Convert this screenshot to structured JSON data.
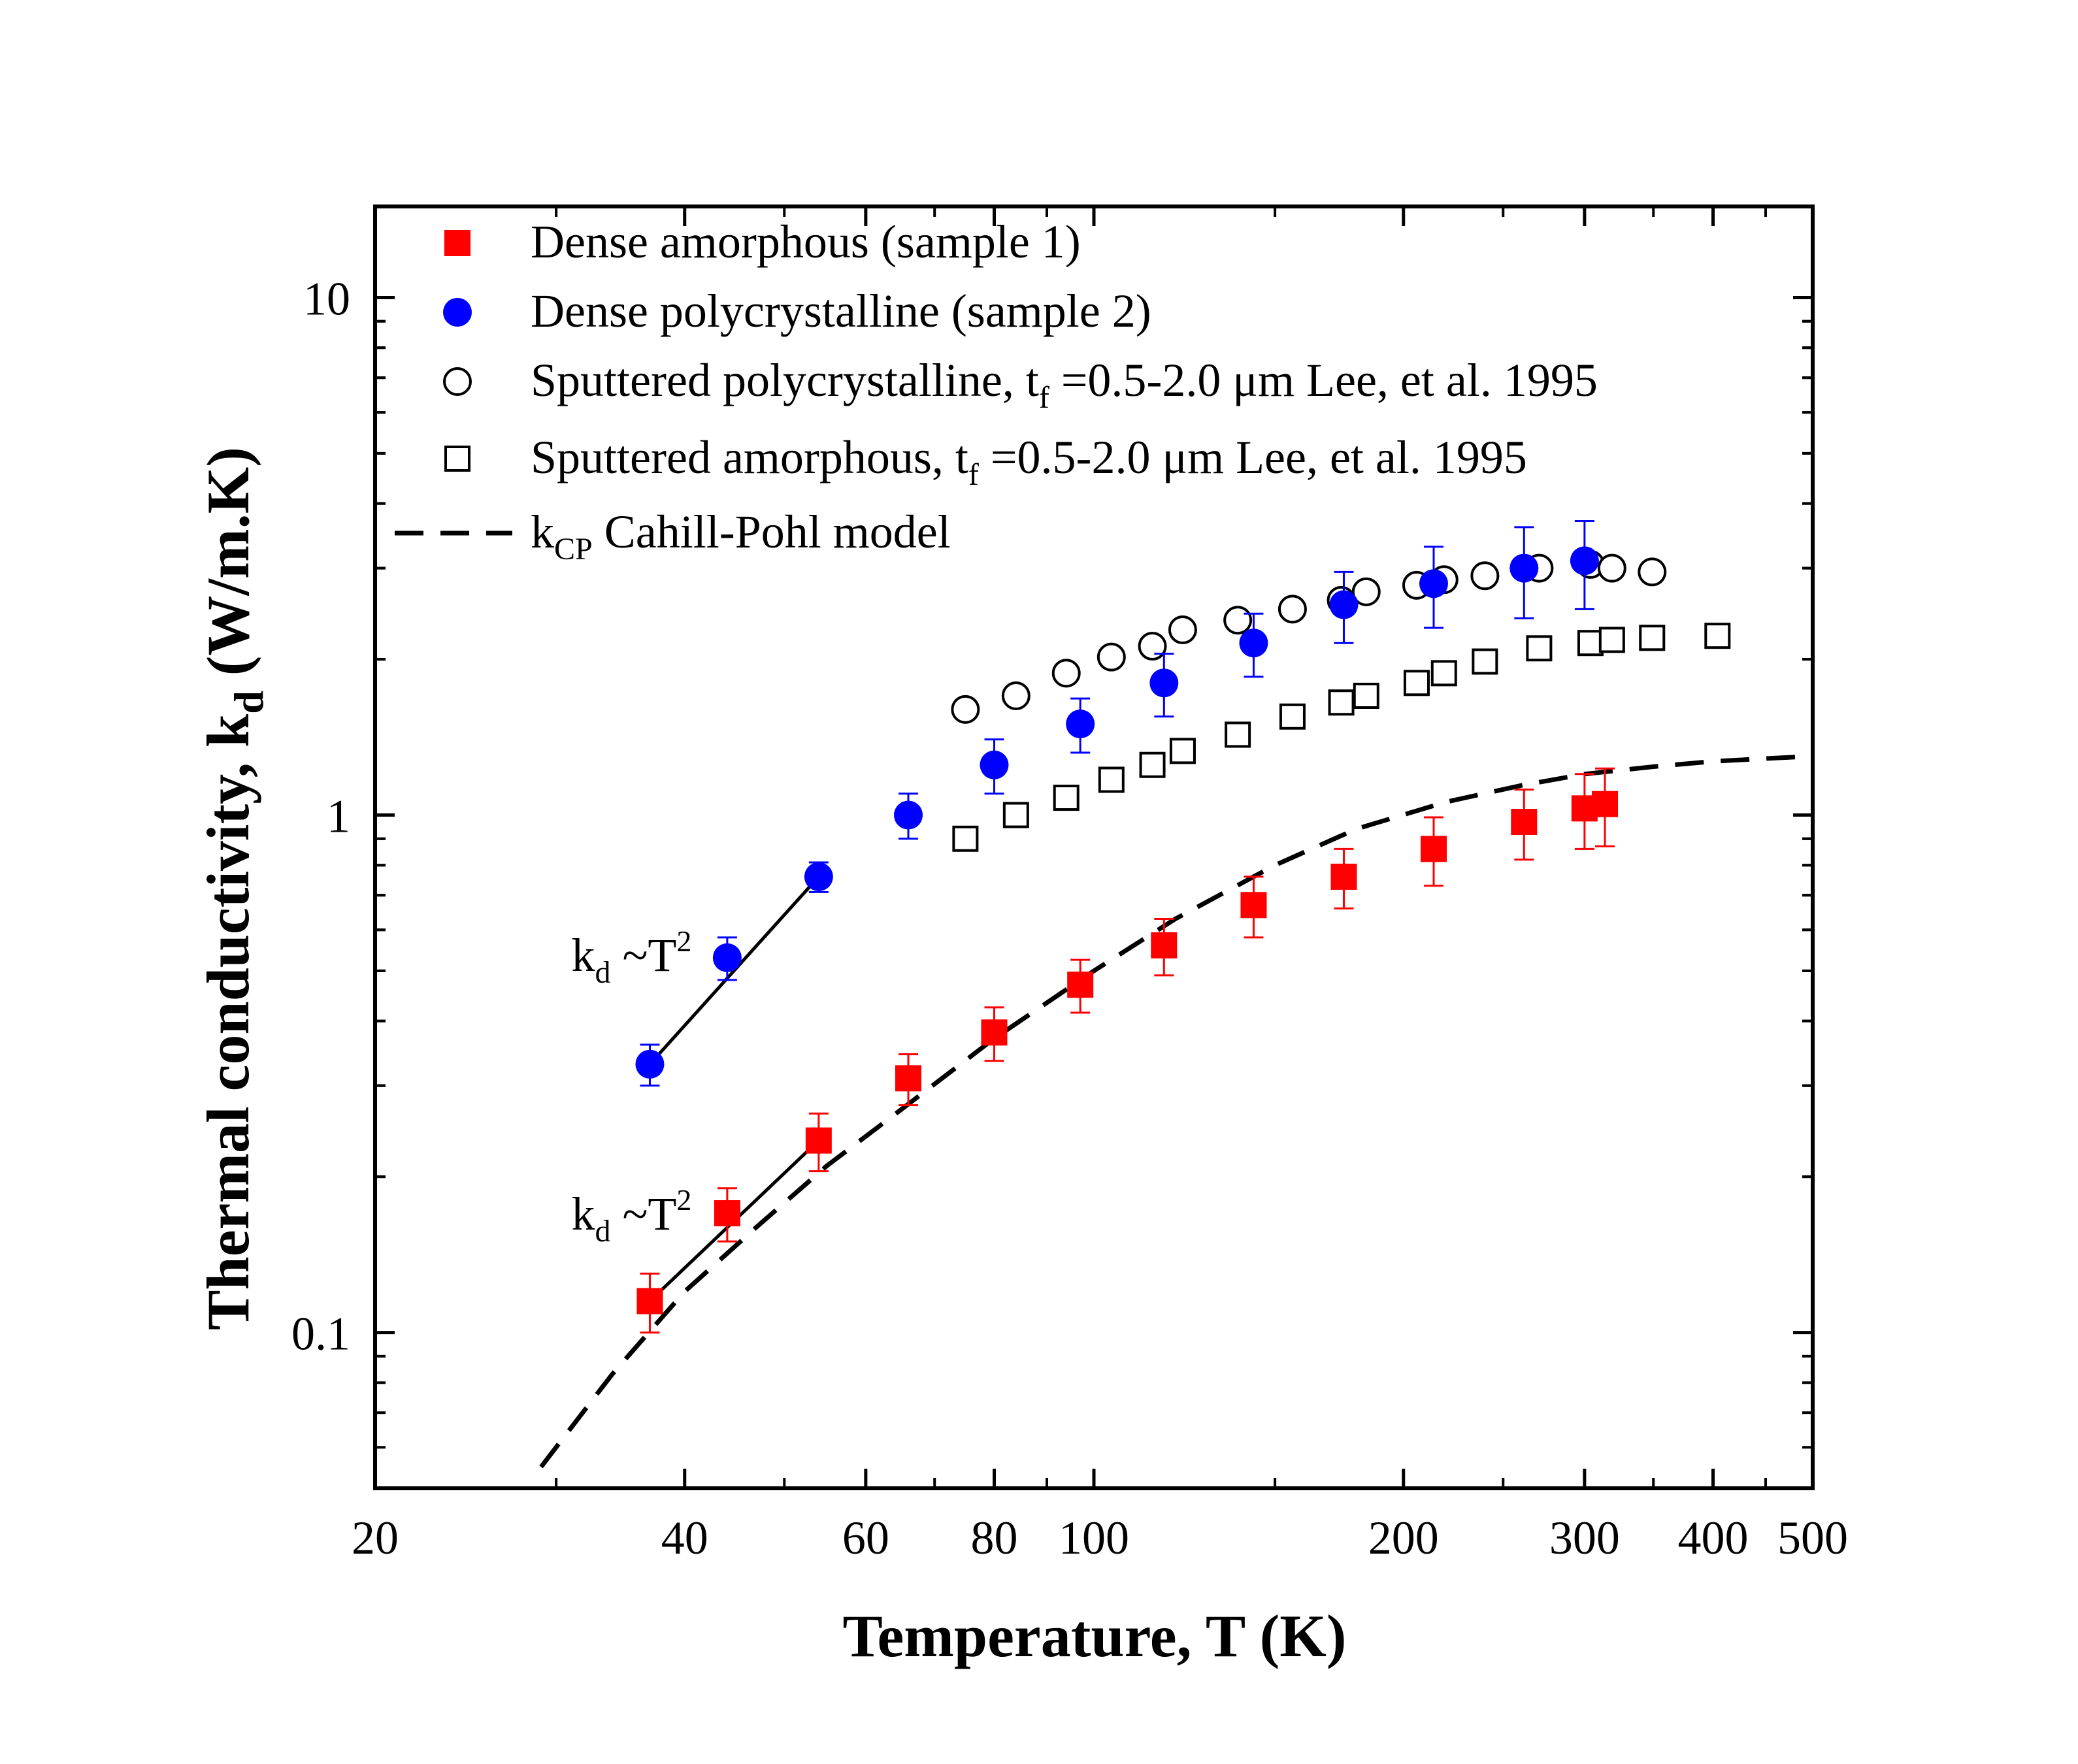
{
  "chart_data": {
    "type": "scatter",
    "xlabel": "Temperature, T (K)",
    "ylabel_main": "Thermal conductivity, k",
    "ylabel_sub": "d",
    "ylabel_unit": " (W/m.K)",
    "x_scale": "log",
    "y_scale": "log",
    "xlim": [
      20,
      500
    ],
    "ylim": [
      0.05,
      15
    ],
    "x_ticks": [
      {
        "value": 20,
        "label": "20"
      },
      {
        "value": 40,
        "label": "40"
      },
      {
        "value": 60,
        "label": "60"
      },
      {
        "value": 80,
        "label": "80"
      },
      {
        "value": 100,
        "label": "100"
      },
      {
        "value": 200,
        "label": "200"
      },
      {
        "value": 300,
        "label": "300"
      },
      {
        "value": 400,
        "label": "400"
      },
      {
        "value": 500,
        "label": "500"
      }
    ],
    "y_ticks": [
      {
        "value": 0.1,
        "label": "0.1"
      },
      {
        "value": 1,
        "label": "1"
      },
      {
        "value": 10,
        "label": "10"
      }
    ],
    "grid": false,
    "legend_position": "top-left",
    "series": [
      {
        "name": "Dense amorphous (sample 1)",
        "marker": "filled-square",
        "color": "#ff0000",
        "x": [
          37,
          44,
          54,
          66,
          80,
          97,
          117,
          143,
          175,
          214,
          262,
          300,
          314
        ],
        "y": [
          0.115,
          0.17,
          0.235,
          0.31,
          0.38,
          0.47,
          0.56,
          0.67,
          0.76,
          0.86,
          0.97,
          1.03,
          1.05
        ],
        "yerr": [
          0.015,
          0.02,
          0.03,
          0.035,
          0.045,
          0.055,
          0.07,
          0.09,
          0.1,
          0.13,
          0.15,
          0.17,
          0.18
        ]
      },
      {
        "name": "Dense polycrystalline (sample 2)",
        "marker": "filled-circle",
        "color": "#0000ff",
        "x": [
          37,
          44,
          54,
          66,
          80,
          97,
          117,
          143,
          175,
          214,
          262,
          300
        ],
        "y": [
          0.33,
          0.53,
          0.76,
          1.0,
          1.25,
          1.5,
          1.8,
          2.15,
          2.55,
          2.8,
          3.0,
          3.1
        ],
        "yerr": [
          0.03,
          0.05,
          0.05,
          0.1,
          0.15,
          0.18,
          0.25,
          0.3,
          0.4,
          0.5,
          0.6,
          0.6
        ]
      },
      {
        "name": "Sputtered polycrystalline, t",
        "name_sub": "f",
        "name_rest": " =0.5-2.0 μm Lee, et al. 1995",
        "marker": "open-circle",
        "color": "#000000",
        "x": [
          75,
          84,
          94,
          104,
          114,
          122,
          138,
          156,
          174,
          184,
          206,
          219,
          240,
          271,
          304,
          319,
          349
        ],
        "y": [
          1.6,
          1.7,
          1.88,
          2.02,
          2.12,
          2.28,
          2.38,
          2.5,
          2.6,
          2.7,
          2.78,
          2.85,
          2.9,
          3.0,
          3.05,
          3.0,
          2.95
        ]
      },
      {
        "name": "Sputtered amorphous, t",
        "name_sub": "f",
        "name_rest": " =0.5-2.0 μm Lee, et al. 1995",
        "marker": "open-square",
        "color": "#000000",
        "x": [
          75,
          84,
          94,
          104,
          114,
          122,
          138,
          156,
          174,
          184,
          206,
          219,
          240,
          271,
          304,
          319,
          349,
          404
        ],
        "y": [
          0.9,
          1.0,
          1.08,
          1.17,
          1.25,
          1.33,
          1.43,
          1.55,
          1.65,
          1.7,
          1.8,
          1.88,
          1.98,
          2.1,
          2.15,
          2.18,
          2.2,
          2.22
        ]
      },
      {
        "name": "k",
        "name_sub": "CP",
        "name_rest": "  Cahill-Pohl model",
        "line": "dashed",
        "color": "#000000",
        "x": [
          29,
          34,
          40,
          47,
          55,
          65,
          80,
          100,
          120,
          150,
          180,
          220,
          260,
          300,
          350,
          400,
          500
        ],
        "y": [
          0.055,
          0.083,
          0.12,
          0.16,
          0.21,
          0.27,
          0.37,
          0.5,
          0.63,
          0.8,
          0.94,
          1.06,
          1.14,
          1.2,
          1.24,
          1.27,
          1.3
        ]
      }
    ],
    "fit_lines": [
      {
        "name": "kd-T2-fit-blue",
        "x": [
          37,
          54
        ],
        "y": [
          0.33,
          0.76
        ]
      },
      {
        "name": "kd-T2-fit-red",
        "x": [
          37,
          54
        ],
        "y": [
          0.115,
          0.235
        ]
      }
    ],
    "annotations": [
      {
        "name": "kd-t2-annotation-blue",
        "k": "k",
        "sub": "d",
        "mid": " ~T",
        "sup": "2",
        "anchor_x": 37,
        "anchor_y": 0.5
      },
      {
        "name": "kd-t2-annotation-red",
        "k": "k",
        "sub": "d",
        "mid": " ~T",
        "sup": "2",
        "anchor_x": 37,
        "anchor_y": 0.158
      }
    ]
  }
}
